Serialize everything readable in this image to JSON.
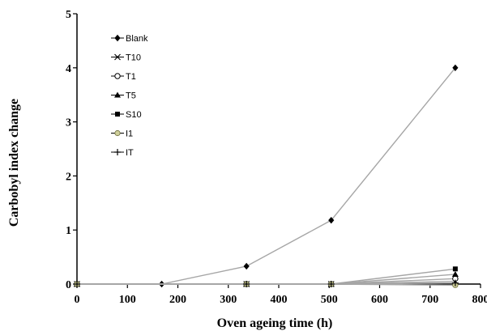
{
  "chart_data": {
    "type": "line",
    "title": "",
    "xlabel": "Oven ageing time (h)",
    "ylabel": "Carbobyl index change",
    "xlim": [
      0,
      800
    ],
    "ylim": [
      0,
      5
    ],
    "xticks": [
      0,
      100,
      200,
      300,
      400,
      500,
      600,
      700,
      800
    ],
    "yticks": [
      0,
      1,
      2,
      3,
      4,
      5
    ],
    "grid": false,
    "legend_position": "top-left",
    "series": [
      {
        "name": "Blank",
        "marker": "diamond",
        "x": [
          0,
          168,
          336,
          504,
          750
        ],
        "y": [
          0,
          0,
          0.33,
          1.18,
          4.0
        ]
      },
      {
        "name": "T10",
        "marker": "x",
        "x": [
          0,
          336,
          504,
          750
        ],
        "y": [
          0,
          0,
          0,
          0.05
        ]
      },
      {
        "name": "T1",
        "marker": "circle",
        "x": [
          0,
          336,
          504,
          750
        ],
        "y": [
          0,
          0,
          0,
          0.1
        ]
      },
      {
        "name": "T5",
        "marker": "triangle",
        "x": [
          0,
          336,
          504,
          750
        ],
        "y": [
          0,
          0,
          0,
          0.18
        ]
      },
      {
        "name": "S10",
        "marker": "square",
        "x": [
          0,
          336,
          504,
          750
        ],
        "y": [
          0,
          0,
          0,
          0.28
        ]
      },
      {
        "name": "I1",
        "marker": "circle-filled",
        "x": [
          0,
          336,
          504,
          750
        ],
        "y": [
          0,
          0,
          0,
          -0.02
        ]
      },
      {
        "name": "IT",
        "marker": "plus",
        "x": [
          0,
          336,
          504,
          750
        ],
        "y": [
          0,
          0,
          0,
          0.02
        ]
      }
    ]
  },
  "colors": {
    "line": "#a6a6a6",
    "marker": "#000000",
    "axis": "#000000",
    "i1_marker_fill": "#cfcf9a"
  }
}
